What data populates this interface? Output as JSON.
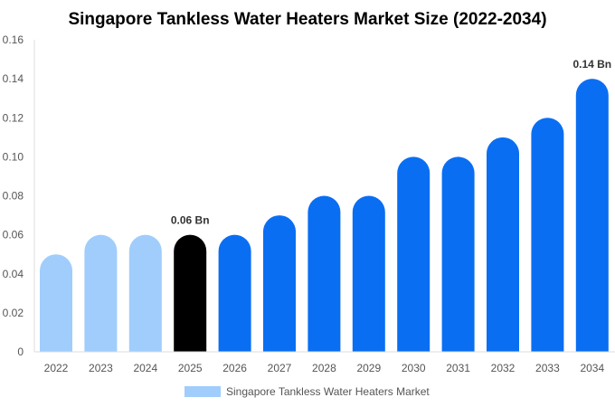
{
  "chart_data": {
    "type": "bar",
    "title": "Singapore Tankless Water Heaters Market Size (2022-2034)",
    "categories": [
      "2022",
      "2023",
      "2024",
      "2025",
      "2026",
      "2027",
      "2028",
      "2029",
      "2030",
      "2031",
      "2032",
      "2033",
      "2034"
    ],
    "series": [
      {
        "name": "Singapore Tankless Water Heaters Market",
        "values": [
          0.05,
          0.06,
          0.06,
          0.06,
          0.06,
          0.07,
          0.08,
          0.08,
          0.1,
          0.1,
          0.11,
          0.12,
          0.14
        ]
      }
    ],
    "bar_colors": [
      "#a0cdfc",
      "#a0cdfc",
      "#a0cdfc",
      "#000000",
      "#0a6ef2",
      "#0a6ef2",
      "#0a6ef2",
      "#0a6ef2",
      "#0a6ef2",
      "#0a6ef2",
      "#0a6ef2",
      "#0a6ef2",
      "#0a6ef2"
    ],
    "legend_color": "#a0cdfc",
    "y_ticks": [
      "0",
      "0.02",
      "0.04",
      "0.06",
      "0.08",
      "0.10",
      "0.12",
      "0.14",
      "0.16"
    ],
    "ylim": [
      0,
      0.16
    ],
    "data_labels": [
      {
        "index": 3,
        "text": "0.06 Bn"
      },
      {
        "index": 12,
        "text": "0.14 Bn"
      }
    ],
    "xlabel": "",
    "ylabel": "",
    "grid": false,
    "legend_position": "bottom"
  }
}
